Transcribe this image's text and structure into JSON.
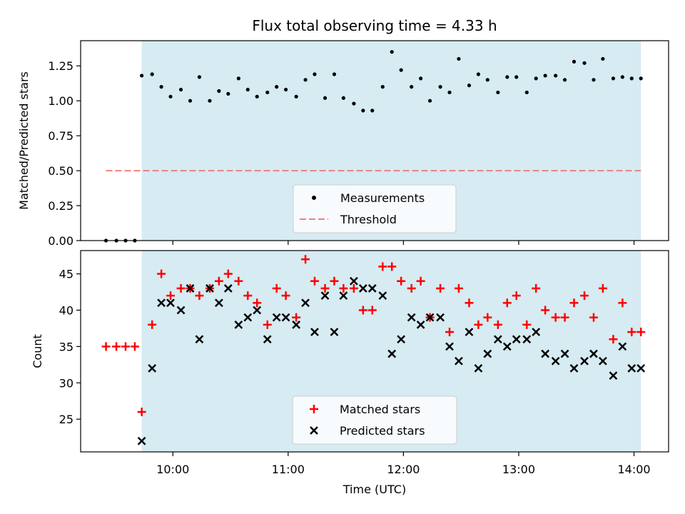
{
  "chart_data": [
    {
      "type": "scatter",
      "title": "Flux total observing time = 4.33 h",
      "ylabel": "Matched/Predicted stars",
      "xlabel": "",
      "ylim": [
        0,
        1.43
      ],
      "yticks": [
        "0.00",
        "0.25",
        "0.50",
        "0.75",
        "1.00",
        "1.25"
      ],
      "observing_span_hours": [
        9.73,
        14.06
      ],
      "x_hours": [
        9.42,
        9.51,
        9.59,
        9.67,
        9.73,
        9.82,
        9.9,
        9.98,
        10.07,
        10.15,
        10.23,
        10.32,
        10.4,
        10.48,
        10.57,
        10.65,
        10.73,
        10.82,
        10.9,
        10.98,
        11.07,
        11.15,
        11.23,
        11.32,
        11.4,
        11.48,
        11.57,
        11.65,
        11.73,
        11.82,
        11.9,
        11.98,
        12.07,
        12.15,
        12.23,
        12.32,
        12.4,
        12.48,
        12.57,
        12.65,
        12.73,
        12.82,
        12.9,
        12.98,
        13.07,
        13.15,
        13.23,
        13.32,
        13.4,
        13.48,
        13.57,
        13.65,
        13.73,
        13.82,
        13.9,
        13.98,
        14.06
      ],
      "series": [
        {
          "name": "Measurements",
          "marker": "dot",
          "color": "#000000",
          "values": [
            0,
            0,
            0,
            0,
            1.18,
            1.19,
            1.1,
            1.03,
            1.08,
            1.0,
            1.17,
            1.0,
            1.07,
            1.05,
            1.16,
            1.08,
            1.03,
            1.06,
            1.1,
            1.08,
            1.03,
            1.15,
            1.19,
            1.02,
            1.19,
            1.02,
            0.98,
            0.93,
            0.93,
            1.1,
            1.35,
            1.22,
            1.1,
            1.16,
            1.0,
            1.1,
            1.06,
            1.3,
            1.11,
            1.19,
            1.15,
            1.06,
            1.17,
            1.17,
            1.06,
            1.16,
            1.18,
            1.18,
            1.15,
            1.28,
            1.27,
            1.15,
            1.3,
            1.16,
            1.17,
            1.16,
            1.16
          ]
        },
        {
          "name": "Threshold",
          "style": "dashed",
          "color": "#f08080",
          "x": [
            9.42,
            14.06
          ],
          "values": [
            0.5,
            0.5
          ]
        }
      ],
      "legend_position": "lower-center"
    },
    {
      "type": "scatter",
      "title": "",
      "ylabel": "Count",
      "xlabel": "Time (UTC)",
      "ylim": [
        20.5,
        48.2
      ],
      "yticks": [
        "25",
        "30",
        "35",
        "40",
        "45"
      ],
      "xlim_hours": [
        9.2,
        14.3
      ],
      "xticks": [
        "10:00",
        "11:00",
        "12:00",
        "13:00",
        "14:00"
      ],
      "observing_span_hours": [
        9.73,
        14.06
      ],
      "x_hours": [
        9.42,
        9.51,
        9.59,
        9.67,
        9.73,
        9.82,
        9.9,
        9.98,
        10.07,
        10.15,
        10.23,
        10.32,
        10.4,
        10.48,
        10.57,
        10.65,
        10.73,
        10.82,
        10.9,
        10.98,
        11.07,
        11.15,
        11.23,
        11.32,
        11.4,
        11.48,
        11.57,
        11.65,
        11.73,
        11.82,
        11.9,
        11.98,
        12.07,
        12.15,
        12.23,
        12.32,
        12.4,
        12.48,
        12.57,
        12.65,
        12.73,
        12.82,
        12.9,
        12.98,
        13.07,
        13.15,
        13.23,
        13.32,
        13.4,
        13.48,
        13.57,
        13.65,
        13.73,
        13.82,
        13.9,
        13.98,
        14.06
      ],
      "series": [
        {
          "name": "Matched stars",
          "marker": "plus",
          "color": "#ff0000",
          "values": [
            35,
            35,
            35,
            35,
            26,
            38,
            45,
            42,
            43,
            43,
            42,
            43,
            44,
            45,
            44,
            42,
            41,
            38,
            43,
            42,
            39,
            47,
            44,
            43,
            44,
            43,
            43,
            40,
            40,
            46,
            46,
            44,
            43,
            44,
            39,
            43,
            37,
            43,
            41,
            38,
            39,
            38,
            41,
            42,
            38,
            43,
            40,
            39,
            39,
            41,
            42,
            39,
            43,
            36,
            41,
            37,
            37
          ]
        },
        {
          "name": "Predicted stars",
          "marker": "x",
          "color": "#000000",
          "values": [
            null,
            null,
            null,
            null,
            22,
            32,
            41,
            41,
            40,
            43,
            36,
            43,
            41,
            43,
            38,
            39,
            40,
            36,
            39,
            39,
            38,
            41,
            37,
            42,
            37,
            42,
            44,
            43,
            43,
            42,
            34,
            36,
            39,
            38,
            39,
            39,
            35,
            33,
            37,
            32,
            34,
            36,
            35,
            36,
            36,
            37,
            34,
            33,
            34,
            32,
            33,
            34,
            33,
            31,
            35,
            32,
            32
          ]
        }
      ],
      "legend_position": "lower-center"
    }
  ]
}
